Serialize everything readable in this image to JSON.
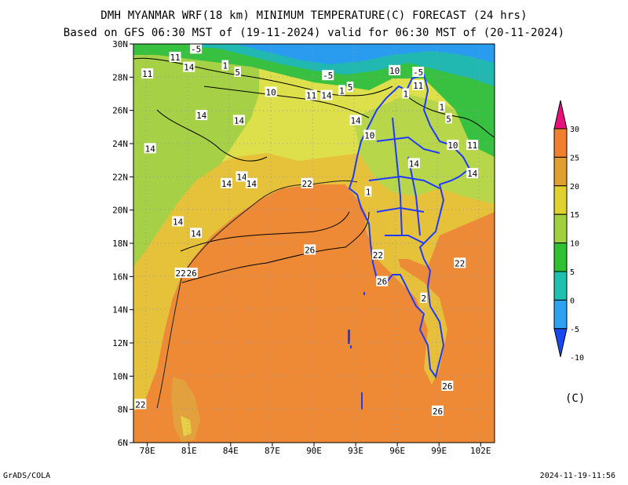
{
  "title_line1": "DMH MYANMAR WRF(18 km) MINIMUM TEMPERATURE(C) FORECAST (24 hrs)",
  "title_line2": "Based on GFS 06:30 MST of (19-11-2024) valid for 06:30 MST of (20-11-2024)",
  "footer_left": "GrADS/COLA",
  "footer_right": "2024-11-19-11:56",
  "map": {
    "lon_range": [
      77,
      103
    ],
    "lat_range": [
      6,
      30
    ],
    "x_ticks": [
      "78E",
      "81E",
      "84E",
      "87E",
      "90E",
      "93E",
      "96E",
      "99E",
      "102E"
    ],
    "y_ticks": [
      "6N",
      "8N",
      "10N",
      "12N",
      "14N",
      "16N",
      "18N",
      "20N",
      "22N",
      "24N",
      "26N",
      "28N",
      "30N"
    ],
    "contour_labels": [
      {
        "text": "-5",
        "lon": 81.5,
        "lat": 29.7
      },
      {
        "text": "11",
        "lon": 80.0,
        "lat": 29.2
      },
      {
        "text": "14",
        "lon": 81.0,
        "lat": 28.6
      },
      {
        "text": "11",
        "lon": 78.0,
        "lat": 28.2
      },
      {
        "text": "1",
        "lon": 83.6,
        "lat": 28.7
      },
      {
        "text": "5",
        "lon": 84.5,
        "lat": 28.3
      },
      {
        "text": "-5",
        "lon": 91.0,
        "lat": 28.1
      },
      {
        "text": "10",
        "lon": 95.8,
        "lat": 28.4
      },
      {
        "text": "-5",
        "lon": 97.5,
        "lat": 28.3
      },
      {
        "text": "10",
        "lon": 86.9,
        "lat": 27.1
      },
      {
        "text": "11",
        "lon": 89.8,
        "lat": 26.9
      },
      {
        "text": "14",
        "lon": 90.9,
        "lat": 26.9
      },
      {
        "text": "1",
        "lon": 92.0,
        "lat": 27.2
      },
      {
        "text": "5",
        "lon": 92.6,
        "lat": 27.4
      },
      {
        "text": "11",
        "lon": 97.5,
        "lat": 27.5
      },
      {
        "text": "1",
        "lon": 96.6,
        "lat": 27.0
      },
      {
        "text": "1",
        "lon": 99.2,
        "lat": 26.2
      },
      {
        "text": "5",
        "lon": 99.7,
        "lat": 25.5
      },
      {
        "text": "14",
        "lon": 81.9,
        "lat": 25.7
      },
      {
        "text": "14",
        "lon": 84.6,
        "lat": 25.4
      },
      {
        "text": "14",
        "lon": 93.0,
        "lat": 25.4
      },
      {
        "text": "14",
        "lon": 78.2,
        "lat": 23.7
      },
      {
        "text": "10",
        "lon": 94.0,
        "lat": 24.5
      },
      {
        "text": "10",
        "lon": 100.0,
        "lat": 23.9
      },
      {
        "text": "11",
        "lon": 101.4,
        "lat": 23.9
      },
      {
        "text": "14",
        "lon": 97.2,
        "lat": 22.8
      },
      {
        "text": "14",
        "lon": 101.4,
        "lat": 22.2
      },
      {
        "text": "14",
        "lon": 84.8,
        "lat": 22.0
      },
      {
        "text": "14",
        "lon": 83.7,
        "lat": 21.6
      },
      {
        "text": "14",
        "lon": 85.5,
        "lat": 21.6
      },
      {
        "text": "22",
        "lon": 89.5,
        "lat": 21.6
      },
      {
        "text": "1",
        "lon": 93.9,
        "lat": 21.1
      },
      {
        "text": "14",
        "lon": 80.2,
        "lat": 19.3
      },
      {
        "text": "14",
        "lon": 81.5,
        "lat": 18.6
      },
      {
        "text": "26",
        "lon": 89.7,
        "lat": 17.6
      },
      {
        "text": "22",
        "lon": 94.6,
        "lat": 17.3
      },
      {
        "text": "22",
        "lon": 100.5,
        "lat": 16.8
      },
      {
        "text": "22",
        "lon": 80.4,
        "lat": 16.2
      },
      {
        "text": "26",
        "lon": 81.2,
        "lat": 16.2
      },
      {
        "text": "26",
        "lon": 94.9,
        "lat": 15.7
      },
      {
        "text": "2",
        "lon": 97.9,
        "lat": 14.7
      },
      {
        "text": "26",
        "lon": 99.6,
        "lat": 9.4
      },
      {
        "text": "22",
        "lon": 77.5,
        "lat": 8.3
      },
      {
        "text": "26",
        "lon": 98.9,
        "lat": 7.9
      }
    ]
  },
  "colorbar": {
    "labels": [
      "30",
      "25",
      "20",
      "15",
      "10",
      "5",
      "0",
      "-5",
      "-10"
    ],
    "unit": "(C)",
    "colors": [
      "#e8107a",
      "#f08030",
      "#e0a030",
      "#e0d030",
      "#a0d040",
      "#30c030",
      "#20c0b0",
      "#30a0f0",
      "#1848f0"
    ]
  }
}
